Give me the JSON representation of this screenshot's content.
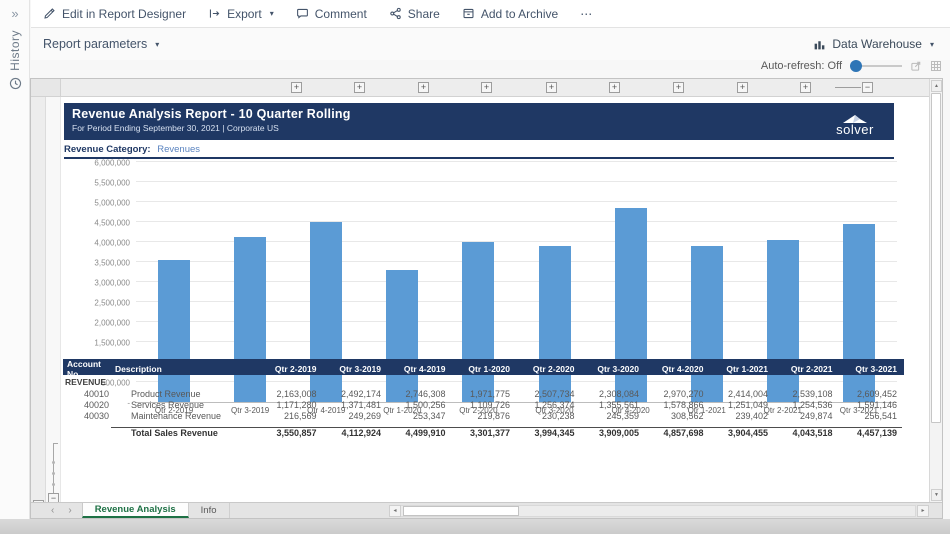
{
  "glyphs": {
    "collapse": "»",
    "caret_down": "▾",
    "plus": "+",
    "minus": "−",
    "arrow_up": "▲",
    "arrow_down": "▼",
    "arrow_left": "◂",
    "arrow_right": "▸",
    "tab_prev": "‹",
    "tab_next": "›"
  },
  "sidebar": {
    "history_label": "History"
  },
  "toolbar": {
    "edit_label": "Edit in Report Designer",
    "export_label": "Export",
    "comment_label": "Comment",
    "share_label": "Share",
    "archive_label": "Add to Archive",
    "more_label": "⋯"
  },
  "parameters_label": "Report parameters",
  "datasource_label": "Data Warehouse",
  "auto_refresh_label": "Auto-refresh: Off",
  "report": {
    "title": "Revenue Analysis Report - 10 Quarter Rolling",
    "subtitle": "For Period Ending September 30, 2021 | Corporate US",
    "logo_text": "solver",
    "category_label": "Revenue Category:",
    "category_value": "Revenues"
  },
  "chart_data": {
    "type": "bar",
    "title": "",
    "xlabel": "",
    "ylabel": "",
    "categories": [
      "Qtr 2-2019",
      "Qtr 3-2019",
      "Qtr 4-2019",
      "Qtr 1-2020",
      "Qtr 2-2020",
      "Qtr 3-2020",
      "Qtr 4-2020",
      "Qtr 1-2021",
      "Qtr 2-2021",
      "Qtr 3-2021"
    ],
    "series_name": "Total Sales Revenue",
    "values": [
      3550857,
      4112924,
      4499910,
      3301377,
      3994345,
      3909005,
      4857698,
      3904455,
      4043518,
      4457139
    ],
    "ylim": [
      0,
      6000000
    ],
    "ytick_step": 500000,
    "zero_label": "-",
    "bar_color": "#5b9bd5",
    "grid": true,
    "legend": false
  },
  "table": {
    "col_account": "Account No.",
    "col_description": "Description",
    "quarters": [
      "Qtr 2-2019",
      "Qtr 3-2019",
      "Qtr 4-2019",
      "Qtr 1-2020",
      "Qtr 2-2020",
      "Qtr 3-2020",
      "Qtr 4-2020",
      "Qtr 1-2021",
      "Qtr 2-2021",
      "Qtr 3-2021"
    ],
    "section_label": "REVENUE",
    "rows": [
      {
        "account": "40010",
        "description": "Product Revenue",
        "values": [
          2163008,
          2492174,
          2746308,
          1971775,
          2507734,
          2308084,
          2970270,
          2414004,
          2539108,
          2609452
        ]
      },
      {
        "account": "40020",
        "description": "Services Revenue",
        "values": [
          1171280,
          1371481,
          1500256,
          1109726,
          1256374,
          1355561,
          1578866,
          1251049,
          1254536,
          1591146
        ]
      },
      {
        "account": "40030",
        "description": "Maintenance Revenue",
        "values": [
          216569,
          249269,
          253347,
          219876,
          230238,
          245359,
          308562,
          239402,
          249874,
          256541
        ]
      }
    ],
    "total_row": {
      "description": "Total Sales Revenue",
      "values": [
        3550857,
        4112924,
        4499910,
        3301377,
        3994345,
        3909005,
        4857698,
        3904455,
        4043518,
        4457139
      ]
    }
  },
  "sheet_tabs": [
    {
      "label": "Revenue Analysis",
      "active": true
    },
    {
      "label": "Info",
      "active": false
    }
  ],
  "colors": {
    "navy": "#1f3864",
    "bar_blue": "#5b9bd5",
    "tab_green": "#1e7145",
    "toggle_blue": "#2e75b6"
  }
}
